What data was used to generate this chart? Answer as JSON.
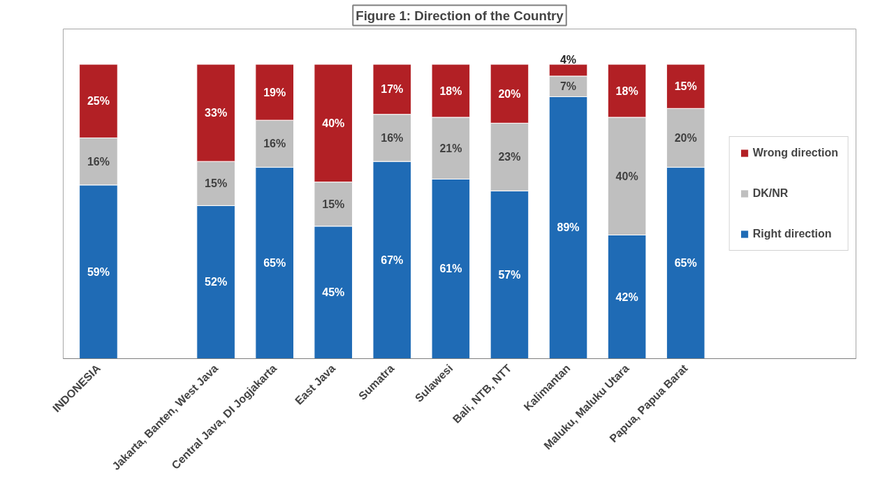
{
  "chart_data": {
    "type": "bar",
    "title": "Figure 1: Direction of the Country",
    "stacked": true,
    "legend": "right",
    "grid": false,
    "categories": [
      "INDONESIA",
      null,
      "Jakarta, Banten, West Java",
      "Central Java, DI Jogjakarta",
      "East Java",
      "Sumatra",
      "Sulawesi",
      "Bali, NTB, NTT",
      "Kalimantan",
      "Maluku, Maluku Utara",
      "Papua, Papua Barat"
    ],
    "series": [
      {
        "name": "Right direction",
        "color": "#1f6bb5",
        "values": [
          59,
          null,
          52,
          65,
          45,
          67,
          61,
          57,
          89,
          42,
          65
        ],
        "value_labels": [
          "59%",
          null,
          "52%",
          "65%",
          "45%",
          "67%",
          "61%",
          "57%",
          "89%",
          "42%",
          "65%"
        ]
      },
      {
        "name": "DK/NR",
        "color": "#bfbfbf",
        "values": [
          16,
          null,
          15,
          16,
          15,
          16,
          21,
          23,
          7,
          40,
          20
        ],
        "value_labels": [
          "16%",
          null,
          "15%",
          "16%",
          "15%",
          "16%",
          "21%",
          "23%",
          "7%",
          "40%",
          "20%"
        ]
      },
      {
        "name": "Wrong direction",
        "color": "#b22025",
        "values": [
          25,
          null,
          33,
          19,
          40,
          17,
          18,
          20,
          4,
          18,
          15
        ],
        "value_labels": [
          "25%",
          null,
          "33%",
          "19%",
          "40%",
          "17%",
          "18%",
          "20%",
          "4%",
          "18%",
          "15%"
        ]
      }
    ]
  }
}
